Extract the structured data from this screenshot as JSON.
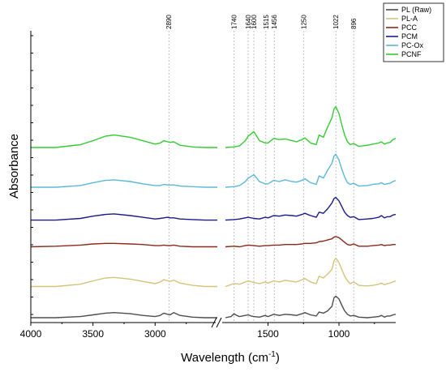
{
  "chart_data": {
    "type": "line",
    "title": "",
    "xlabel": "Wavelength (cm",
    "xlabel_sup": "-1",
    "xlabel_close": ")",
    "ylabel": "Absorbance",
    "x_reversed": true,
    "axis_break": [
      2100,
      1800
    ],
    "xlim_left": [
      4000,
      2500
    ],
    "xlim_right": [
      1800,
      600
    ],
    "x_ticks": [
      4000,
      3500,
      3000,
      1500,
      1000
    ],
    "x_tick_labels": [
      "4000",
      "3500",
      "3000",
      "1500",
      "1000"
    ],
    "peak_markers": [
      {
        "x": 2890,
        "label": "2890"
      },
      {
        "x": 1740,
        "label": "1740"
      },
      {
        "x": 1640,
        "label": "1640"
      },
      {
        "x": 1600,
        "label": "1600"
      },
      {
        "x": 1515,
        "label": "1515"
      },
      {
        "x": 1456,
        "label": "1456"
      },
      {
        "x": 1250,
        "label": "1250"
      },
      {
        "x": 1022,
        "label": "1022"
      },
      {
        "x": 896,
        "label": "896"
      }
    ],
    "legend_position": "top-right",
    "series": [
      {
        "name": "PL (Raw)",
        "color": "#4d4d4d",
        "offset": 0.0,
        "x": [
          4000,
          3800,
          3600,
          3500,
          3400,
          3330,
          3200,
          3100,
          3000,
          2960,
          2930,
          2900,
          2880,
          2850,
          2800,
          2700,
          2600,
          2500,
          1800,
          1760,
          1740,
          1720,
          1700,
          1660,
          1640,
          1620,
          1600,
          1560,
          1520,
          1500,
          1460,
          1420,
          1380,
          1330,
          1300,
          1260,
          1240,
          1200,
          1160,
          1140,
          1110,
          1080,
          1050,
          1035,
          1022,
          1000,
          980,
          960,
          940,
          920,
          896,
          860,
          800,
          760,
          720,
          700,
          680,
          660,
          640,
          620,
          600
        ],
        "y": [
          0.0,
          0.0,
          0.02,
          0.05,
          0.08,
          0.09,
          0.07,
          0.04,
          0.02,
          0.04,
          0.08,
          0.06,
          0.05,
          0.09,
          0.04,
          0.01,
          0.0,
          0.0,
          0.0,
          0.02,
          0.07,
          0.04,
          0.02,
          0.04,
          0.05,
          0.03,
          0.02,
          0.01,
          0.04,
          0.02,
          0.06,
          0.04,
          0.06,
          0.05,
          0.04,
          0.07,
          0.09,
          0.05,
          0.03,
          0.1,
          0.08,
          0.12,
          0.2,
          0.35,
          0.38,
          0.33,
          0.22,
          0.12,
          0.06,
          0.03,
          0.04,
          0.01,
          0.0,
          0.01,
          0.02,
          0.04,
          0.01,
          0.03,
          0.03,
          0.05,
          0.06
        ]
      },
      {
        "name": "PL-A",
        "color": "#d4c479",
        "offset": 0.55,
        "x": [
          4000,
          3800,
          3600,
          3500,
          3400,
          3330,
          3200,
          3100,
          3000,
          2960,
          2930,
          2900,
          2880,
          2850,
          2800,
          2700,
          2600,
          2500,
          1800,
          1740,
          1700,
          1660,
          1640,
          1600,
          1560,
          1520,
          1500,
          1460,
          1420,
          1380,
          1330,
          1300,
          1260,
          1240,
          1200,
          1160,
          1140,
          1110,
          1080,
          1050,
          1035,
          1022,
          1000,
          980,
          960,
          940,
          920,
          896,
          860,
          800,
          760,
          720,
          700,
          680,
          660,
          640,
          620,
          600
        ],
        "y": [
          0.0,
          0.0,
          0.04,
          0.1,
          0.15,
          0.16,
          0.13,
          0.09,
          0.05,
          0.08,
          0.12,
          0.1,
          0.09,
          0.11,
          0.06,
          0.02,
          0.0,
          0.0,
          0.0,
          0.05,
          0.04,
          0.08,
          0.1,
          0.07,
          0.05,
          0.08,
          0.06,
          0.1,
          0.08,
          0.11,
          0.09,
          0.08,
          0.12,
          0.14,
          0.08,
          0.05,
          0.18,
          0.15,
          0.22,
          0.3,
          0.45,
          0.5,
          0.42,
          0.3,
          0.18,
          0.1,
          0.05,
          0.08,
          0.02,
          0.01,
          0.02,
          0.04,
          0.06,
          0.03,
          0.05,
          0.06,
          0.08,
          0.1
        ]
      },
      {
        "name": "PCC",
        "color": "#8b2a1a",
        "offset": 1.25,
        "x": [
          4000,
          3800,
          3600,
          3500,
          3400,
          3330,
          3200,
          3100,
          3000,
          2960,
          2930,
          2900,
          2880,
          2850,
          2800,
          2700,
          2600,
          2500,
          1800,
          1740,
          1700,
          1660,
          1640,
          1600,
          1560,
          1520,
          1500,
          1460,
          1420,
          1380,
          1330,
          1300,
          1260,
          1240,
          1200,
          1160,
          1140,
          1110,
          1080,
          1050,
          1035,
          1022,
          1000,
          980,
          960,
          940,
          920,
          896,
          860,
          800,
          760,
          720,
          700,
          680,
          660,
          640,
          620,
          600
        ],
        "y": [
          0.0,
          0.01,
          0.03,
          0.05,
          0.06,
          0.06,
          0.05,
          0.04,
          0.02,
          0.02,
          0.03,
          0.02,
          0.02,
          0.03,
          0.01,
          0.0,
          0.0,
          0.0,
          0.0,
          0.01,
          0.0,
          0.02,
          0.03,
          0.02,
          0.01,
          0.02,
          0.02,
          0.03,
          0.03,
          0.04,
          0.04,
          0.04,
          0.05,
          0.06,
          0.06,
          0.07,
          0.09,
          0.1,
          0.12,
          0.14,
          0.17,
          0.18,
          0.16,
          0.12,
          0.08,
          0.04,
          0.03,
          0.05,
          0.01,
          0.01,
          0.02,
          0.03,
          0.04,
          0.02,
          0.03,
          0.03,
          0.04,
          0.04
        ]
      },
      {
        "name": "PCM",
        "color": "#1a1a8f",
        "offset": 1.72,
        "x": [
          4000,
          3800,
          3600,
          3500,
          3400,
          3330,
          3200,
          3100,
          3000,
          2960,
          2930,
          2900,
          2880,
          2850,
          2800,
          2700,
          2600,
          2500,
          1800,
          1740,
          1700,
          1660,
          1640,
          1600,
          1560,
          1520,
          1500,
          1460,
          1420,
          1380,
          1330,
          1300,
          1260,
          1240,
          1200,
          1160,
          1140,
          1110,
          1080,
          1050,
          1035,
          1022,
          1000,
          980,
          960,
          940,
          920,
          896,
          860,
          800,
          760,
          720,
          700,
          680,
          660,
          640,
          620,
          600
        ],
        "y": [
          0.0,
          0.0,
          0.03,
          0.07,
          0.1,
          0.11,
          0.08,
          0.05,
          0.02,
          0.03,
          0.04,
          0.05,
          0.04,
          0.04,
          0.02,
          0.01,
          0.0,
          0.0,
          0.0,
          0.01,
          0.02,
          0.04,
          0.05,
          0.03,
          0.02,
          0.05,
          0.04,
          0.08,
          0.07,
          0.09,
          0.08,
          0.07,
          0.1,
          0.12,
          0.08,
          0.05,
          0.14,
          0.12,
          0.2,
          0.3,
          0.38,
          0.4,
          0.34,
          0.24,
          0.14,
          0.08,
          0.05,
          0.06,
          0.01,
          0.02,
          0.03,
          0.05,
          0.08,
          0.04,
          0.06,
          0.06,
          0.09,
          0.1
        ]
      },
      {
        "name": "PC-Ox",
        "color": "#5ab8d8",
        "offset": 2.3,
        "x": [
          4000,
          3800,
          3600,
          3500,
          3400,
          3330,
          3200,
          3100,
          3000,
          2960,
          2930,
          2900,
          2880,
          2850,
          2800,
          2700,
          2600,
          2500,
          1800,
          1740,
          1700,
          1660,
          1640,
          1600,
          1560,
          1520,
          1500,
          1460,
          1420,
          1380,
          1330,
          1300,
          1260,
          1240,
          1200,
          1160,
          1140,
          1110,
          1080,
          1050,
          1035,
          1022,
          1000,
          980,
          960,
          940,
          920,
          896,
          860,
          800,
          760,
          720,
          700,
          680,
          660,
          640,
          620,
          600
        ],
        "y": [
          0.0,
          0.0,
          0.03,
          0.08,
          0.12,
          0.13,
          0.1,
          0.06,
          0.03,
          0.03,
          0.05,
          0.04,
          0.04,
          0.04,
          0.02,
          0.01,
          0.0,
          0.0,
          0.0,
          0.01,
          0.03,
          0.1,
          0.16,
          0.22,
          0.1,
          0.06,
          0.06,
          0.12,
          0.1,
          0.13,
          0.1,
          0.09,
          0.12,
          0.15,
          0.08,
          0.05,
          0.2,
          0.16,
          0.3,
          0.42,
          0.55,
          0.58,
          0.48,
          0.32,
          0.18,
          0.08,
          0.05,
          0.07,
          0.02,
          0.03,
          0.05,
          0.06,
          0.08,
          0.05,
          0.06,
          0.07,
          0.1,
          0.12
        ]
      },
      {
        "name": "PCNF",
        "color": "#33cc33",
        "offset": 3.0,
        "x": [
          4000,
          3800,
          3600,
          3500,
          3400,
          3330,
          3200,
          3100,
          3000,
          2960,
          2930,
          2900,
          2880,
          2850,
          2800,
          2700,
          2600,
          2500,
          1800,
          1740,
          1700,
          1660,
          1640,
          1600,
          1560,
          1520,
          1500,
          1460,
          1420,
          1380,
          1330,
          1300,
          1260,
          1240,
          1200,
          1160,
          1140,
          1110,
          1080,
          1050,
          1035,
          1022,
          1000,
          980,
          960,
          940,
          920,
          896,
          860,
          800,
          760,
          720,
          700,
          680,
          660,
          640,
          620,
          600
        ],
        "y": [
          0.0,
          0.0,
          0.05,
          0.12,
          0.2,
          0.22,
          0.18,
          0.12,
          0.06,
          0.08,
          0.12,
          0.1,
          0.09,
          0.1,
          0.04,
          0.01,
          0.0,
          0.0,
          0.0,
          0.01,
          0.03,
          0.12,
          0.2,
          0.28,
          0.12,
          0.08,
          0.08,
          0.16,
          0.14,
          0.15,
          0.12,
          0.1,
          0.14,
          0.17,
          0.08,
          0.05,
          0.22,
          0.18,
          0.36,
          0.52,
          0.68,
          0.72,
          0.6,
          0.4,
          0.22,
          0.1,
          0.05,
          0.07,
          0.02,
          0.04,
          0.06,
          0.08,
          0.1,
          0.06,
          0.08,
          0.09,
          0.14,
          0.16
        ]
      }
    ]
  }
}
